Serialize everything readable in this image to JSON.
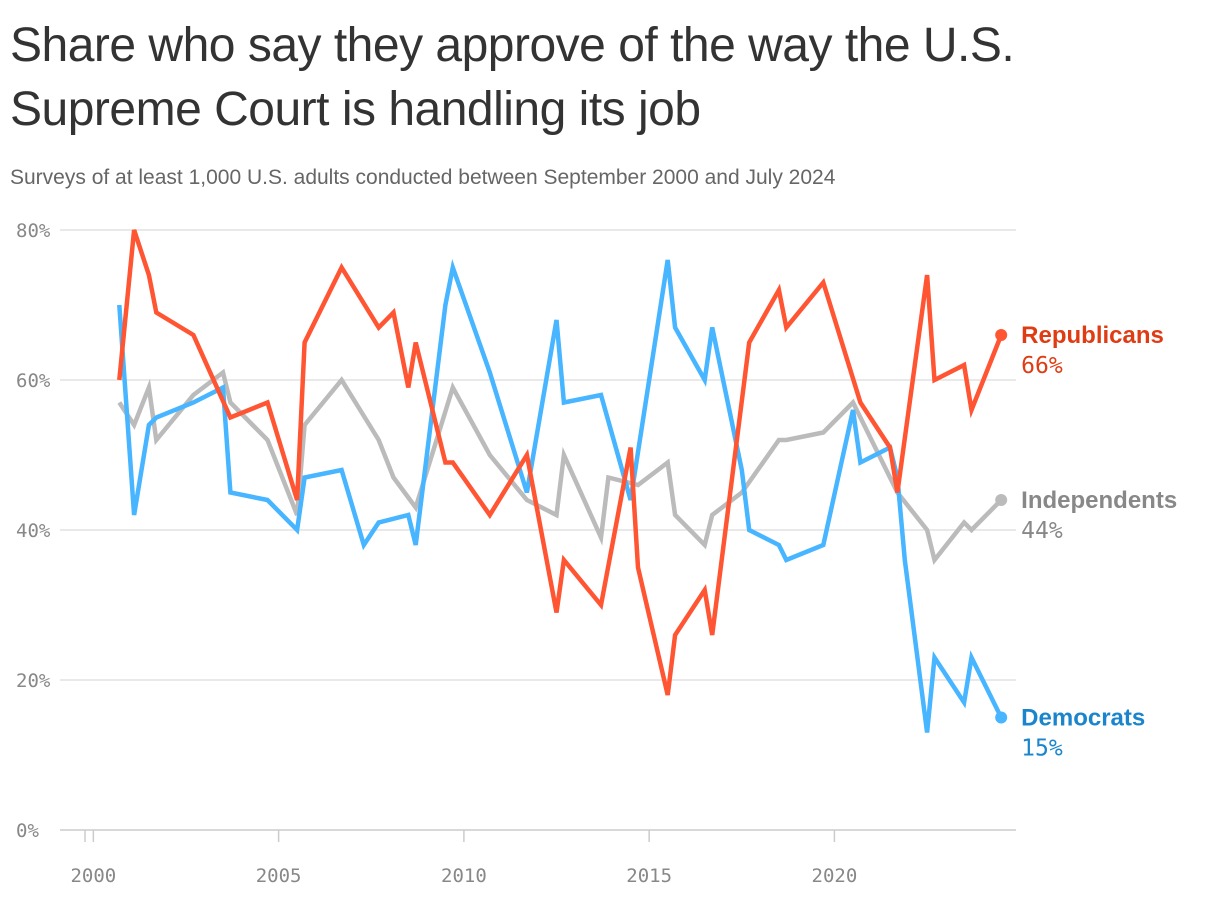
{
  "chart_data": {
    "type": "line",
    "title": "Share who say they approve of the way the U.S. Supreme Court is handling its job",
    "subtitle": "Surveys of at least 1,000 U.S. adults conducted between September 2000 and July 2024",
    "xlabel": "",
    "ylabel": "",
    "xlim": [
      1999.1,
      2024.9
    ],
    "ylim": [
      0,
      80
    ],
    "x_ticks": [
      {
        "value": 2000,
        "label": "2000"
      },
      {
        "value": 2005,
        "label": "2005"
      },
      {
        "value": 2010,
        "label": "2010"
      },
      {
        "value": 2015,
        "label": "2015"
      },
      {
        "value": 2020,
        "label": "2020"
      }
    ],
    "y_ticks": [
      {
        "value": 0,
        "label": "0%"
      },
      {
        "value": 20,
        "label": "20%"
      },
      {
        "value": 40,
        "label": "40%"
      },
      {
        "value": 60,
        "label": "60%"
      },
      {
        "value": 80,
        "label": "80%"
      }
    ],
    "grid": true,
    "legend": "direct labels at right end of lines",
    "series": [
      {
        "name": "Independents",
        "color": "#bbbbbb",
        "label_color": "#888888",
        "end_label": "44%",
        "points": [
          [
            2000.7,
            57
          ],
          [
            2001.1,
            54
          ],
          [
            2001.5,
            59
          ],
          [
            2001.7,
            52
          ],
          [
            2002.7,
            58
          ],
          [
            2003.5,
            61
          ],
          [
            2003.7,
            57
          ],
          [
            2004.7,
            52
          ],
          [
            2005.5,
            42
          ],
          [
            2005.7,
            54
          ],
          [
            2006.7,
            60
          ],
          [
            2007.7,
            52
          ],
          [
            2008.1,
            47
          ],
          [
            2008.7,
            43
          ],
          [
            2009.7,
            59
          ],
          [
            2010.7,
            50
          ],
          [
            2011.7,
            44
          ],
          [
            2012.5,
            42
          ],
          [
            2012.7,
            50
          ],
          [
            2013.7,
            39
          ],
          [
            2013.9,
            47
          ],
          [
            2014.7,
            46
          ],
          [
            2015.5,
            49
          ],
          [
            2015.7,
            42
          ],
          [
            2016.5,
            38
          ],
          [
            2016.7,
            42
          ],
          [
            2017.5,
            45
          ],
          [
            2018.5,
            52
          ],
          [
            2018.7,
            52
          ],
          [
            2019.7,
            53
          ],
          [
            2020.5,
            57
          ],
          [
            2020.7,
            55
          ],
          [
            2021.7,
            45
          ],
          [
            2022.5,
            40
          ],
          [
            2022.7,
            36
          ],
          [
            2023.5,
            41
          ],
          [
            2023.7,
            40
          ],
          [
            2024.5,
            44
          ]
        ]
      },
      {
        "name": "Democrats",
        "color": "#47b5ff",
        "label_color": "#1a85cc",
        "end_label": "15%",
        "points": [
          [
            2000.7,
            70
          ],
          [
            2001.1,
            42
          ],
          [
            2001.5,
            54
          ],
          [
            2001.7,
            55
          ],
          [
            2002.7,
            57
          ],
          [
            2003.5,
            59
          ],
          [
            2003.7,
            45
          ],
          [
            2004.7,
            44
          ],
          [
            2005.5,
            40
          ],
          [
            2005.7,
            47
          ],
          [
            2006.7,
            48
          ],
          [
            2007.3,
            38
          ],
          [
            2007.7,
            41
          ],
          [
            2008.5,
            42
          ],
          [
            2008.7,
            38
          ],
          [
            2009.5,
            70
          ],
          [
            2009.7,
            75
          ],
          [
            2010.7,
            61
          ],
          [
            2011.7,
            45
          ],
          [
            2012.5,
            68
          ],
          [
            2012.7,
            57
          ],
          [
            2013.7,
            58
          ],
          [
            2014.5,
            44
          ],
          [
            2015.5,
            76
          ],
          [
            2015.7,
            67
          ],
          [
            2016.5,
            60
          ],
          [
            2016.7,
            67
          ],
          [
            2017.5,
            48
          ],
          [
            2017.7,
            40
          ],
          [
            2018.5,
            38
          ],
          [
            2018.7,
            36
          ],
          [
            2019.7,
            38
          ],
          [
            2020.5,
            56
          ],
          [
            2020.7,
            49
          ],
          [
            2021.5,
            51
          ],
          [
            2021.7,
            47
          ],
          [
            2021.9,
            36
          ],
          [
            2022.5,
            13
          ],
          [
            2022.7,
            23
          ],
          [
            2023.5,
            17
          ],
          [
            2023.7,
            23
          ],
          [
            2024.5,
            15
          ]
        ]
      },
      {
        "name": "Republicans",
        "color": "#ff5533",
        "label_color": "#e03c13",
        "end_label": "66%",
        "points": [
          [
            2000.7,
            60
          ],
          [
            2001.1,
            80
          ],
          [
            2001.5,
            74
          ],
          [
            2001.7,
            69
          ],
          [
            2002.7,
            66
          ],
          [
            2003.7,
            55
          ],
          [
            2004.7,
            57
          ],
          [
            2005.5,
            44
          ],
          [
            2005.7,
            65
          ],
          [
            2006.7,
            75
          ],
          [
            2007.7,
            67
          ],
          [
            2008.1,
            69
          ],
          [
            2008.5,
            59
          ],
          [
            2008.7,
            65
          ],
          [
            2009.5,
            49
          ],
          [
            2009.7,
            49
          ],
          [
            2010.7,
            42
          ],
          [
            2011.7,
            50
          ],
          [
            2012.5,
            29
          ],
          [
            2012.7,
            36
          ],
          [
            2013.7,
            30
          ],
          [
            2014.5,
            51
          ],
          [
            2014.7,
            35
          ],
          [
            2015.5,
            18
          ],
          [
            2015.7,
            26
          ],
          [
            2016.5,
            32
          ],
          [
            2016.7,
            26
          ],
          [
            2017.7,
            65
          ],
          [
            2018.5,
            72
          ],
          [
            2018.7,
            67
          ],
          [
            2019.7,
            73
          ],
          [
            2020.7,
            57
          ],
          [
            2021.5,
            51
          ],
          [
            2021.7,
            45
          ],
          [
            2022.5,
            74
          ],
          [
            2022.7,
            60
          ],
          [
            2023.5,
            62
          ],
          [
            2023.7,
            56
          ],
          [
            2024.5,
            66
          ]
        ]
      }
    ]
  }
}
